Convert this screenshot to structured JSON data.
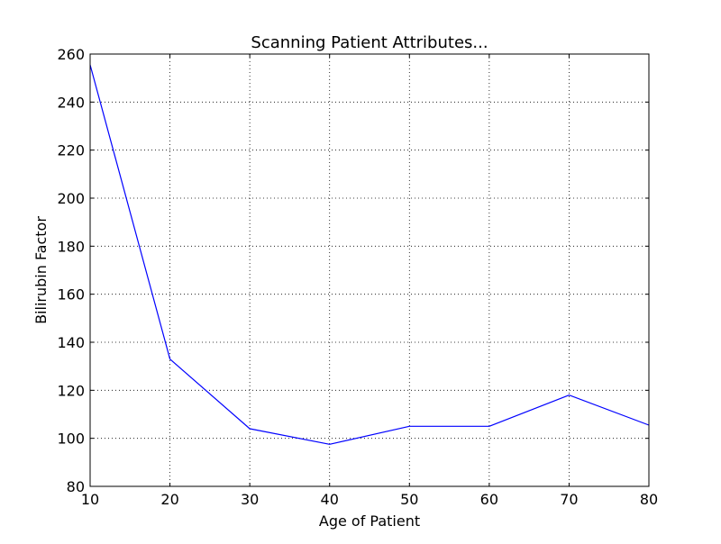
{
  "chart_data": {
    "type": "line",
    "title": "Scanning Patient Attributes...",
    "xlabel": "Age of Patient",
    "ylabel": "Bilirubin Factor",
    "xlim": [
      10,
      80
    ],
    "ylim": [
      80,
      260
    ],
    "xticks": [
      10,
      20,
      30,
      40,
      50,
      60,
      70,
      80
    ],
    "yticks": [
      80,
      100,
      120,
      140,
      160,
      180,
      200,
      220,
      240,
      260
    ],
    "grid": true,
    "legend": "none",
    "series": [
      {
        "color": "#0000ff",
        "x": [
          10,
          20,
          30,
          40,
          50,
          60,
          70,
          80
        ],
        "y": [
          255.5,
          133,
          104,
          97.5,
          105,
          105,
          118,
          105.5
        ]
      }
    ]
  }
}
